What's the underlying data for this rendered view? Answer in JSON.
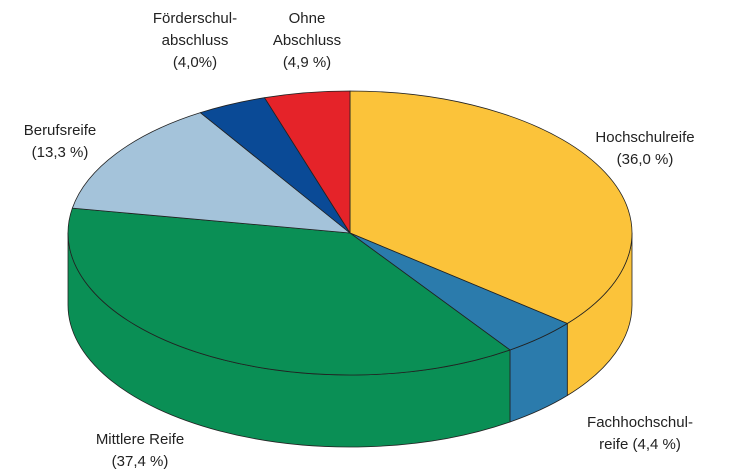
{
  "chart_data": {
    "type": "pie",
    "categories": [
      [
        "Hochschulreife"
      ],
      [
        "Fachhochschul-",
        "reife"
      ],
      [
        "Mittlere Reife"
      ],
      [
        "Berufsreife"
      ],
      [
        "Förderschul-",
        "abschluss"
      ],
      [
        "Ohne",
        "Abschluss"
      ]
    ],
    "values": [
      36.0,
      4.4,
      37.4,
      13.3,
      4.0,
      4.9
    ],
    "value_labels": [
      "(36,0 %)",
      "(4,4 %)",
      "(37,4 %)",
      "(13,3 %)",
      "(4,0%)",
      "(4,9 %)"
    ],
    "colors": [
      "#fbc33a",
      "#2b7bac",
      "#0a8f55",
      "#a4c3da",
      "#0a4a96",
      "#e52329"
    ]
  }
}
